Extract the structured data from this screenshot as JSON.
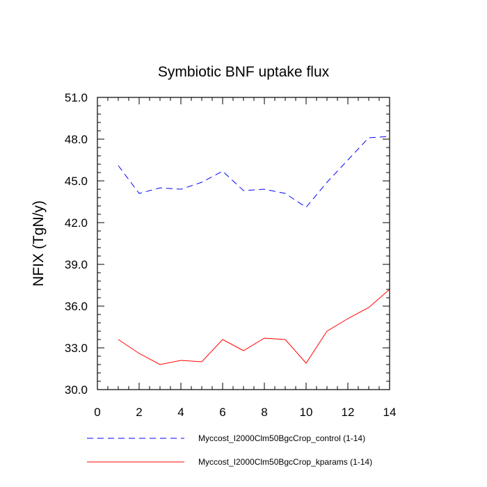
{
  "chart_data": {
    "type": "line",
    "title": "Symbiotic BNF uptake flux",
    "xlabel": "",
    "ylabel": "NFIX  (TgN/y)",
    "xlim": [
      0,
      14
    ],
    "ylim": [
      30.0,
      51.0
    ],
    "x_ticks": [
      "0",
      "2",
      "4",
      "6",
      "8",
      "10",
      "12",
      "14"
    ],
    "y_ticks": [
      "30.0",
      "33.0",
      "36.0",
      "39.0",
      "42.0",
      "45.0",
      "48.0",
      "51.0"
    ],
    "grid": false,
    "legend_position": "bottom",
    "x": [
      1,
      2,
      3,
      4,
      5,
      6,
      7,
      8,
      9,
      10,
      11,
      12,
      13,
      14
    ],
    "series": [
      {
        "name": "Myccost_I2000Clm50BgcCrop_control (1-14)",
        "color": "#0000ff",
        "style": "dashed",
        "values": [
          46.1,
          44.1,
          44.5,
          44.4,
          44.9,
          45.7,
          44.3,
          44.4,
          44.1,
          43.1,
          44.9,
          46.5,
          48.1,
          48.2
        ]
      },
      {
        "name": "Myccost_I2000Clm50BgcCrop_kparams (1-14)",
        "color": "#ff0000",
        "style": "solid",
        "values": [
          33.6,
          32.6,
          31.8,
          32.1,
          32.0,
          33.6,
          32.8,
          33.7,
          33.6,
          31.9,
          34.2,
          35.1,
          35.9,
          37.2
        ]
      }
    ]
  }
}
